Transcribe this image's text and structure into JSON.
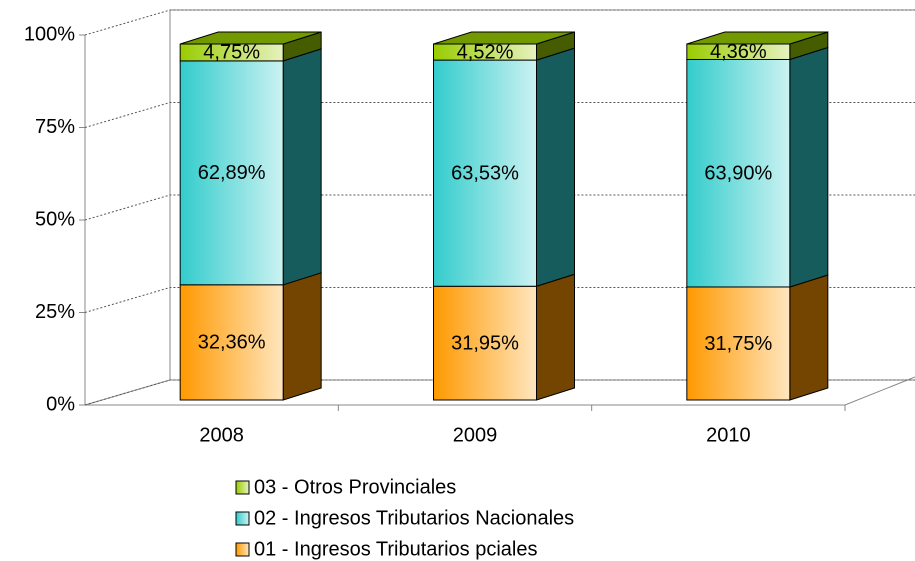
{
  "chart_data": {
    "type": "bar3d_stacked100",
    "categories": [
      "2008",
      "2009",
      "2010"
    ],
    "series": [
      {
        "name": "01 - Ingresos Tributarios pciales",
        "color": "#ff9900",
        "values": [
          32.36,
          31.95,
          31.75
        ],
        "value_labels": [
          "32,36%",
          "31,95%",
          "31,75%"
        ]
      },
      {
        "name": "02 - Ingresos Tributarios Nacionales",
        "color": "#33cccc",
        "values": [
          62.89,
          63.53,
          63.9
        ],
        "value_labels": [
          "62,89%",
          "63,53%",
          "63,90%"
        ]
      },
      {
        "name": "03 - Otros Provinciales",
        "color": "#99cc00",
        "values": [
          4.75,
          4.52,
          4.36
        ],
        "value_labels": [
          "4,75%",
          "4,52%",
          "4,36%"
        ]
      }
    ],
    "ylim": [
      0,
      100
    ],
    "yticks": [
      {
        "value": 0,
        "label": "0%"
      },
      {
        "value": 25,
        "label": "25%"
      },
      {
        "value": 50,
        "label": "50%"
      },
      {
        "value": 75,
        "label": "75%"
      },
      {
        "value": 100,
        "label": "100%"
      }
    ],
    "grid": true
  }
}
